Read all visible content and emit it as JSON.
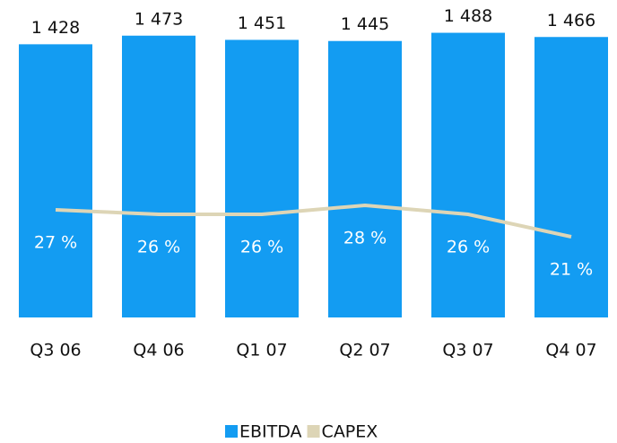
{
  "chart_data": {
    "type": "bar",
    "categories": [
      "Q3 06",
      "Q4 06",
      "Q1 07",
      "Q2 07",
      "Q3 07",
      "Q4 07"
    ],
    "ylim": [
      0,
      1500
    ],
    "y2lim": [
      3,
      67
    ],
    "series": [
      {
        "name": "EBITDA",
        "type": "bar",
        "color": "#139cf2",
        "values": [
          1428,
          1473,
          1451,
          1445,
          1488,
          1466
        ],
        "value_labels": [
          "1 428",
          "1 473",
          "1 451",
          "1 445",
          "1 488",
          "1 466"
        ]
      },
      {
        "name": "CAPEX",
        "type": "line",
        "axis": "y2",
        "color": "#ddd5b6",
        "values": [
          27,
          26,
          26,
          28,
          26,
          21
        ],
        "value_labels": [
          "27 %",
          "26 %",
          "26 %",
          "28 %",
          "26 %",
          "21 %"
        ]
      }
    ],
    "legend": "bottom"
  }
}
